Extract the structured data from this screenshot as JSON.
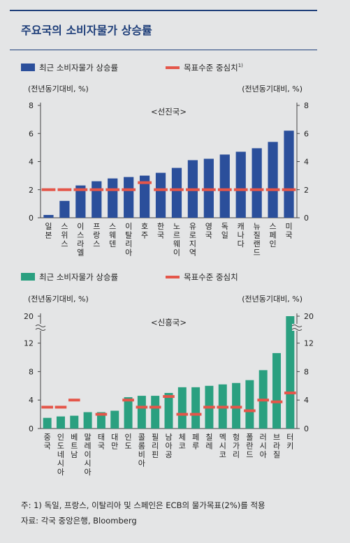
{
  "page": {
    "title": "주요국의 소비자물가 상승률"
  },
  "notes": {
    "note": "주: 1) 독일, 프랑스, 이탈리아 및 스페인은 ECB의 물가목표(2%)를 적용",
    "source": "자료: 각국 중앙은행, Bloomberg"
  },
  "colors": {
    "advanced_bar": "#2b4f9b",
    "emerging_bar": "#2aa080",
    "target": "#e4564a"
  },
  "chart_data": [
    {
      "type": "bar",
      "subtitle": "<선진국>",
      "ylabel_left": "(전년동기대비, %)",
      "ylabel_right": "(전년동기대비, %)",
      "legend": {
        "bar": "최근 소비자물가 상승률",
        "target": "목표수준 중심치",
        "target_sup": "1)"
      },
      "ylim": [
        0,
        8
      ],
      "yticks": [
        0,
        2,
        4,
        6,
        8
      ],
      "categories": [
        "일본",
        "스위스",
        "이스라엘",
        "프랑스",
        "스웨덴",
        "이탈리아",
        "호주",
        "한국",
        "노르웨이",
        "유로지역",
        "영국",
        "독일",
        "캐나다",
        "뉴질랜드",
        "스페인",
        "미국"
      ],
      "series": [
        {
          "name": "최근 소비자물가 상승률",
          "type": "bar",
          "values": [
            0.2,
            1.2,
            2.3,
            2.6,
            2.8,
            2.9,
            3.0,
            3.2,
            3.55,
            4.1,
            4.2,
            4.5,
            4.7,
            4.95,
            5.4,
            6.2
          ]
        },
        {
          "name": "목표수준 중심치",
          "type": "marker",
          "values": [
            2,
            2,
            2,
            2,
            2,
            2,
            2.5,
            2,
            2,
            2,
            2,
            2,
            2,
            2,
            2,
            2
          ]
        }
      ]
    },
    {
      "type": "bar",
      "subtitle": "<신흥국>",
      "ylabel_left": "(전년동기대비, %)",
      "ylabel_right": "(전년동기대비, %)",
      "legend": {
        "bar": "최근 소비자물가 상승률",
        "target": "목표수준 중심치"
      },
      "ylim": [
        0,
        20
      ],
      "axis_break": [
        14,
        20
      ],
      "yticks": [
        0,
        4,
        8,
        12,
        20
      ],
      "categories": [
        "중국",
        "인도네시아",
        "베트남",
        "말레이시아",
        "태국",
        "대만",
        "인도",
        "콜롬비아",
        "필리핀",
        "남아공",
        "체코",
        "페루",
        "칠레",
        "멕시코",
        "헝가리",
        "폴란드",
        "러시아",
        "브라질",
        "터키"
      ],
      "series": [
        {
          "name": "최근 소비자물가 상승률",
          "type": "bar",
          "values": [
            1.5,
            1.7,
            1.8,
            2.3,
            2.3,
            2.5,
            4.4,
            4.6,
            4.6,
            5.0,
            5.8,
            5.8,
            6.0,
            6.2,
            6.4,
            6.8,
            8.2,
            10.6,
            20.0
          ]
        },
        {
          "name": "목표수준 중심치",
          "type": "marker",
          "values": [
            3,
            3,
            4,
            null,
            2,
            null,
            4,
            3,
            3,
            4.5,
            2,
            2,
            3,
            3,
            3,
            2.5,
            4,
            3.75,
            5
          ]
        }
      ]
    }
  ]
}
